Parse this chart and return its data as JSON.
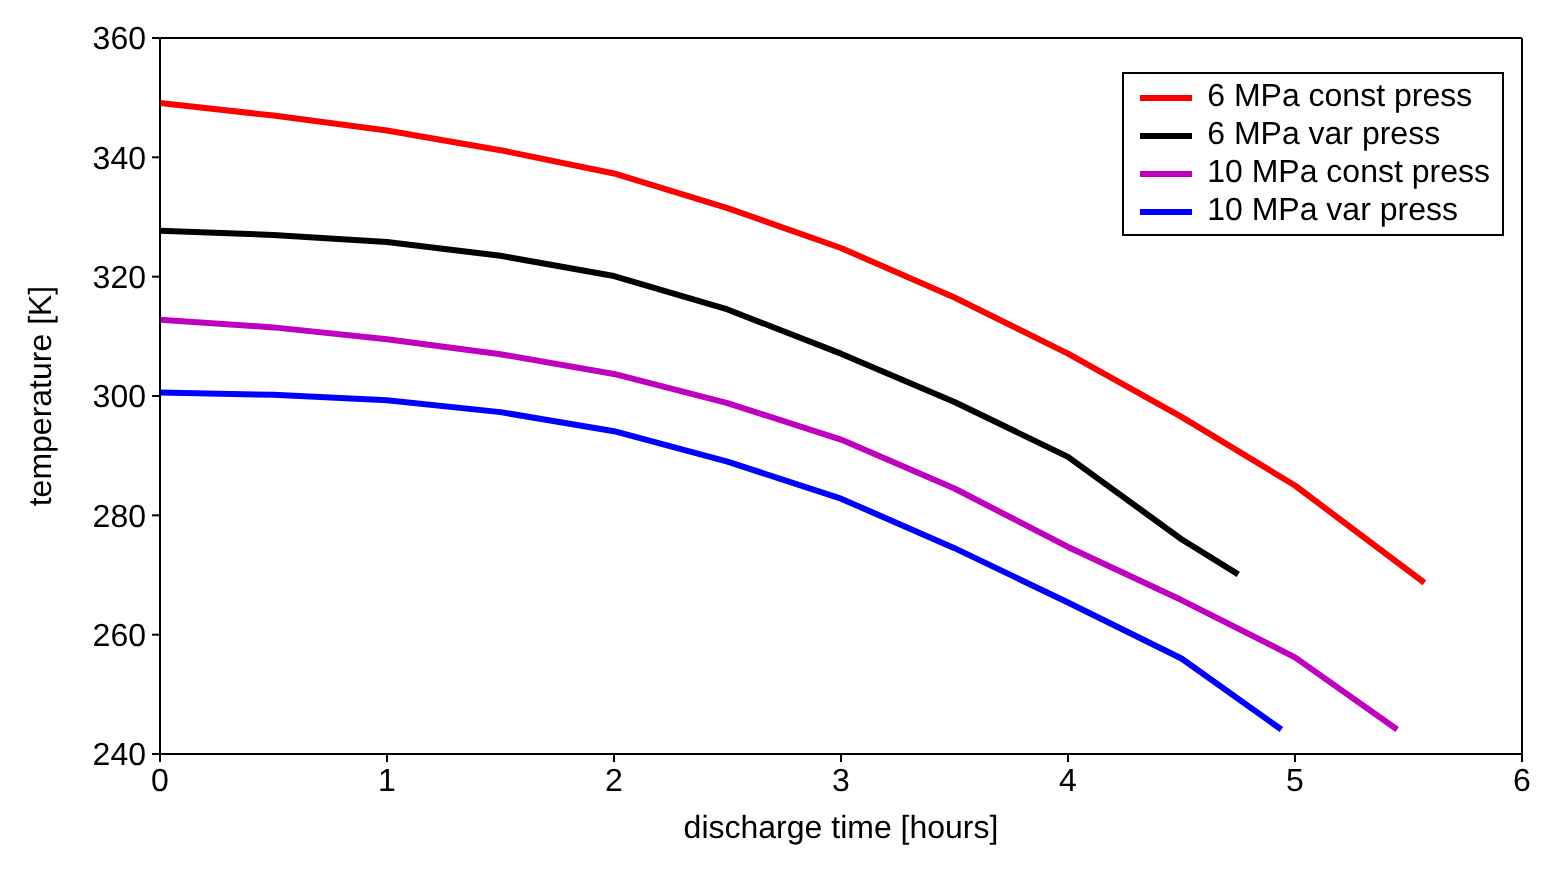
{
  "chart_data": {
    "type": "line",
    "xlabel": "discharge time [hours]",
    "ylabel": "temperature [K]",
    "xlim": [
      0,
      6
    ],
    "xticks": [
      0,
      1,
      2,
      3,
      4,
      5,
      6
    ],
    "ylim": [
      240,
      360
    ],
    "yticks": [
      240,
      260,
      280,
      300,
      320,
      340,
      360
    ],
    "legend": "top right",
    "marker": "none",
    "line_style": "solid",
    "series": [
      {
        "name": "6 MPa const press",
        "color": "#ff0000",
        "x": [
          0,
          0.5,
          1,
          1.5,
          2,
          2.5,
          3,
          3.5,
          4,
          4.5,
          5,
          5.57
        ],
        "values": [
          349.1,
          347,
          344.5,
          341.2,
          337.3,
          331.5,
          324.8,
          316.5,
          307.1,
          296.5,
          285,
          268.7
        ]
      },
      {
        "name": "6 MPa var press",
        "color": "#000000",
        "x": [
          0,
          0.5,
          1,
          1.5,
          2,
          2.5,
          3,
          3.5,
          4,
          4.5,
          4.75
        ],
        "values": [
          327.7,
          327,
          325.8,
          323.5,
          320.1,
          314.5,
          307.1,
          299,
          289.8,
          276,
          270.1
        ]
      },
      {
        "name": "10 MPa const press",
        "color": "#bf00bf",
        "x": [
          0,
          0.5,
          1,
          1.5,
          2,
          2.5,
          3,
          3.5,
          4,
          4.5,
          5,
          5.45
        ],
        "values": [
          312.8,
          311.5,
          309.5,
          307,
          303.7,
          298.8,
          292.7,
          284.5,
          274.7,
          265.8,
          256.2,
          244.1
        ]
      },
      {
        "name": "10 MPa var press",
        "color": "#0000ff",
        "x": [
          0,
          0.5,
          1,
          1.5,
          2,
          2.5,
          3,
          3.5,
          4,
          4.5,
          4.94
        ],
        "values": [
          300.6,
          300.2,
          299.3,
          297.3,
          294.1,
          289,
          282.8,
          274.5,
          265.4,
          256,
          244.1
        ]
      }
    ]
  }
}
